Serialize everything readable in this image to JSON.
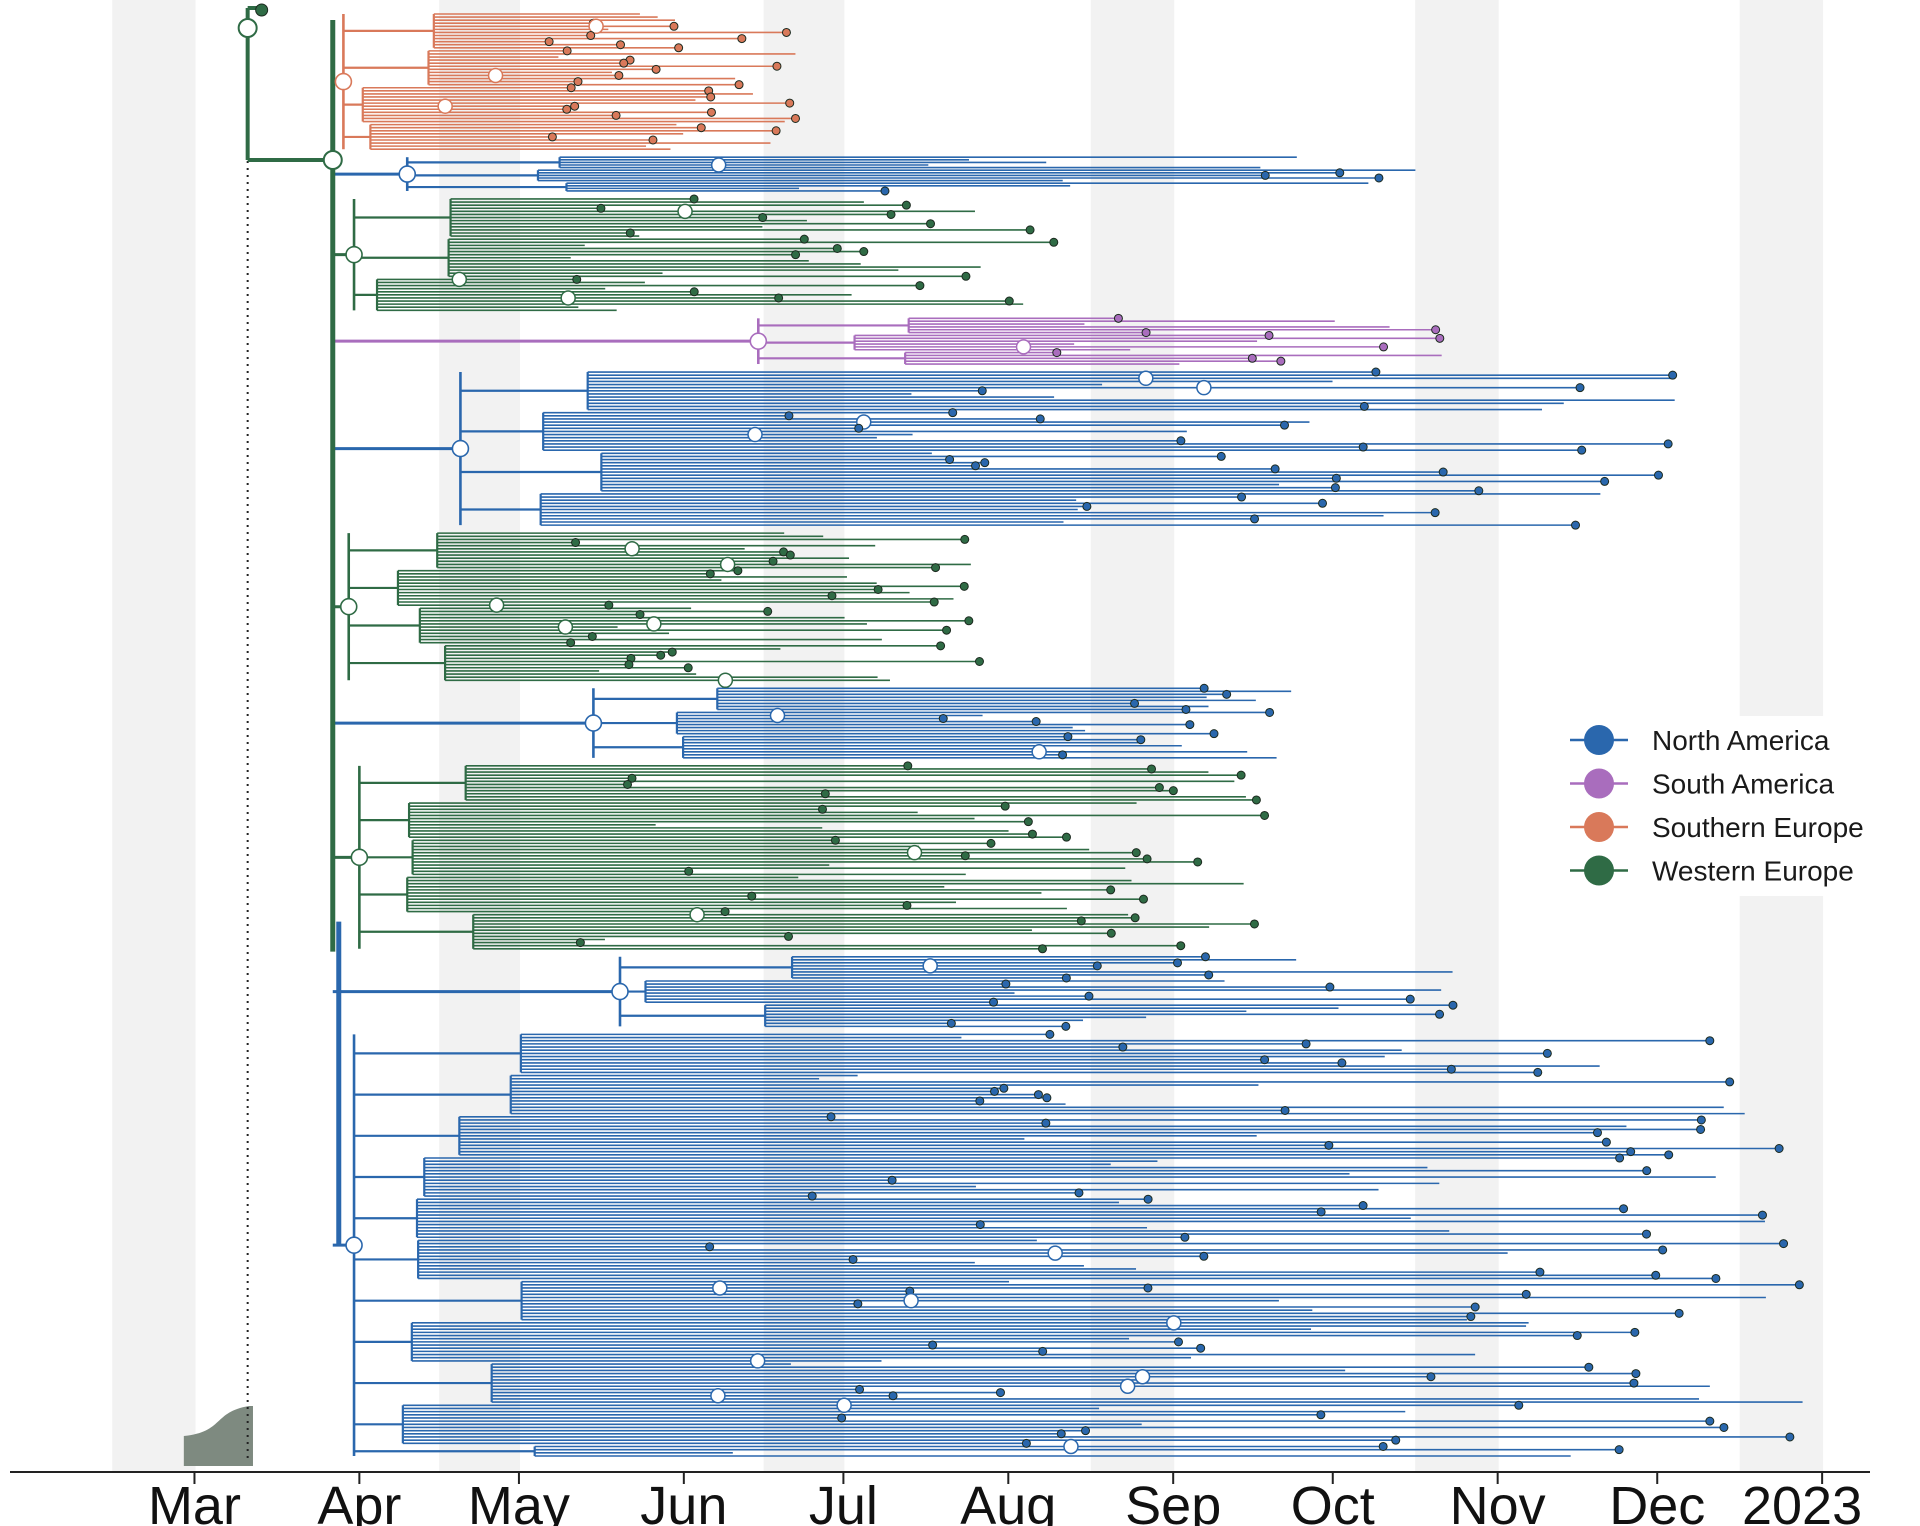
{
  "chart_data": {
    "type": "phylogenetic-tree",
    "title": "",
    "xlabel": "",
    "ylabel": "",
    "x_axis": {
      "ticks": [
        "Mar",
        "Apr",
        "May",
        "Jun",
        "Jul",
        "Aug",
        "Sep",
        "Oct",
        "Nov",
        "Dec",
        "2023"
      ],
      "range": [
        "2022-02-15",
        "2023-01-10"
      ],
      "alternating_month_shading": true
    },
    "root_date": "2022-03-11",
    "legend": {
      "placement": "right",
      "entries": [
        {
          "name": "North America",
          "color": "#2a67ad"
        },
        {
          "name": "South America",
          "color": "#a96dbd"
        },
        {
          "name": "Southern Europe",
          "color": "#d9795a"
        },
        {
          "name": "Western Europe",
          "color": "#2f6b45"
        }
      ]
    },
    "colors": {
      "background_band": "#f2f2f2",
      "density_fill": "#7e8a80",
      "node_outline": "#1c2a1f",
      "ancestral_node": "#ffffff"
    },
    "clades": [
      {
        "region": "Southern Europe",
        "root_date": "2022-03-29",
        "first_tip": "2022-04-28",
        "last_tip": "2022-06-22",
        "extinct": false
      },
      {
        "region": "North America",
        "root_date": "2022-04-10",
        "first_tip": "2022-06-10",
        "last_tip": "2022-10-20",
        "extinct": false
      },
      {
        "region": "Western Europe",
        "root_date": "2022-03-31",
        "first_tip": "2022-05-01",
        "last_tip": "2022-08-10",
        "extinct": false
      },
      {
        "region": "South America",
        "root_date": "2022-06-15",
        "first_tip": "2022-08-10",
        "last_tip": "2022-10-28",
        "extinct": false
      },
      {
        "region": "North America",
        "root_date": "2022-04-20",
        "first_tip": "2022-06-15",
        "last_tip": "2022-12-05",
        "extinct": false
      },
      {
        "region": "Western Europe",
        "root_date": "2022-03-30",
        "first_tip": "2022-05-05",
        "last_tip": "2022-07-28",
        "extinct": false
      },
      {
        "region": "North America",
        "root_date": "2022-05-15",
        "first_tip": "2022-07-10",
        "last_tip": "2022-09-25",
        "extinct": false
      },
      {
        "region": "Western Europe",
        "root_date": "2022-04-01",
        "first_tip": "2022-05-10",
        "last_tip": "2022-09-20",
        "extinct": false
      },
      {
        "region": "North America",
        "root_date": "2022-05-20",
        "first_tip": "2022-07-15",
        "last_tip": "2022-10-25",
        "extinct": false
      },
      {
        "region": "North America",
        "root_date": "2022-03-31",
        "first_tip": "2022-06-01",
        "last_tip": "2022-12-30",
        "extinct": false
      }
    ]
  }
}
